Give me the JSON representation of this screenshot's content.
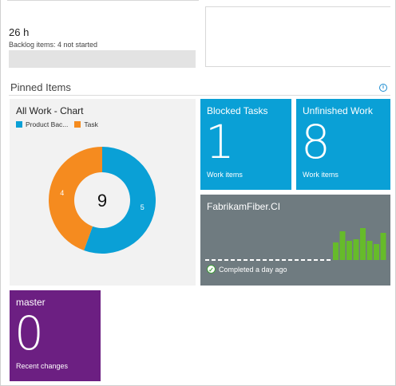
{
  "summary": {
    "hours": "26 h",
    "backlog_text": "Backlog items: 4 not started",
    "progress": 0
  },
  "pinned": {
    "title": "Pinned Items",
    "info_icon": "info-icon"
  },
  "chart_tile": {
    "title": "All Work - Chart",
    "total": "9",
    "legend": [
      {
        "label": "Product Bac...",
        "color": "#0aa0d6"
      },
      {
        "label": "Task",
        "color": "#f58b1f"
      }
    ]
  },
  "chart_data": {
    "type": "pie",
    "categories": [
      "Product Bac...",
      "Task"
    ],
    "values": [
      5,
      4
    ],
    "colors": [
      "#0aa0d6",
      "#f58b1f"
    ],
    "labels": [
      "5",
      "4"
    ],
    "center_label": "9"
  },
  "tiles": {
    "blocked": {
      "title": "Blocked Tasks",
      "count": "1",
      "sub": "Work items",
      "color": "#0aa0d6"
    },
    "unfinished": {
      "title": "Unfinished Work",
      "count": "8",
      "sub": "Work items",
      "color": "#0aa0d6"
    },
    "master": {
      "title": "master",
      "count": "0",
      "sub": "Recent changes",
      "color": "#6c1f82"
    }
  },
  "build": {
    "title": "FabrikamFiber.CI",
    "status": "Completed a day ago",
    "success_color": "#66bb2a",
    "history": [
      0.55,
      0.9,
      0.6,
      0.65,
      1.0,
      0.6,
      0.5,
      0.85
    ]
  }
}
